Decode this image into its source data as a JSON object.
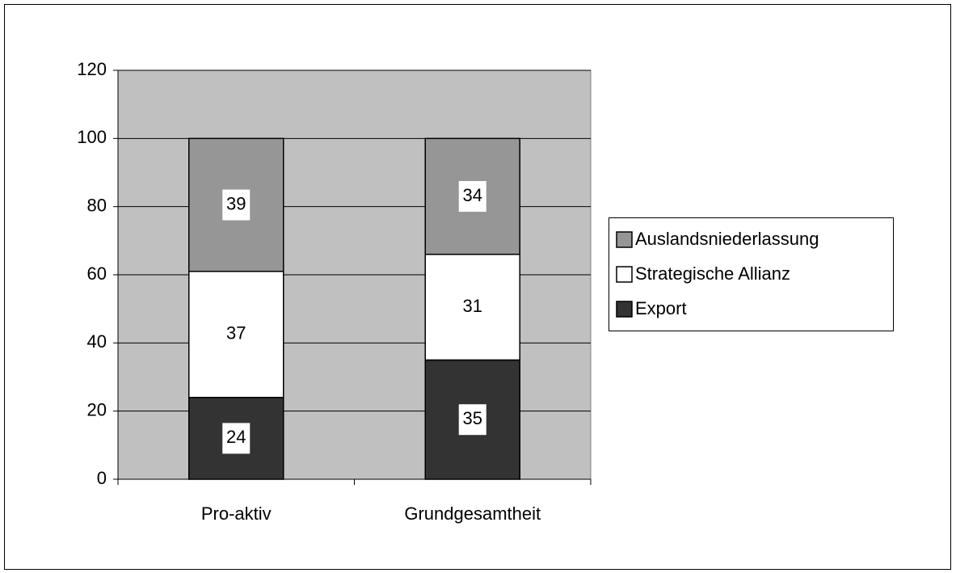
{
  "chart_data": {
    "type": "stacked_bar",
    "categories": [
      "Pro-aktiv",
      "Grundgesamtheit"
    ],
    "series": [
      {
        "name": "Export",
        "color": "#333333",
        "values": [
          24,
          35
        ]
      },
      {
        "name": "Strategische Allianz",
        "color": "#ffffff",
        "values": [
          37,
          31
        ]
      },
      {
        "name": "Auslandsniederlassung",
        "color": "#969696",
        "values": [
          39,
          34
        ]
      }
    ],
    "ylim": [
      0,
      120
    ],
    "yticks": [
      0,
      20,
      40,
      60,
      80,
      100,
      120
    ],
    "grid": true,
    "legend": "right",
    "plot_background": "#c0c0c0"
  }
}
